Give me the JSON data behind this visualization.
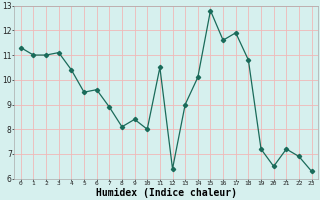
{
  "x": [
    0,
    1,
    2,
    3,
    4,
    5,
    6,
    7,
    8,
    9,
    10,
    11,
    12,
    13,
    14,
    15,
    16,
    17,
    18,
    19,
    20,
    21,
    22,
    23
  ],
  "y": [
    11.3,
    11.0,
    11.0,
    11.1,
    10.4,
    9.5,
    9.6,
    8.9,
    8.1,
    8.4,
    8.0,
    10.5,
    6.4,
    9.0,
    10.1,
    12.8,
    11.6,
    11.9,
    10.8,
    7.2,
    6.5,
    7.2,
    6.9,
    6.3
  ],
  "xlim": [
    -0.5,
    23.5
  ],
  "ylim": [
    6,
    13
  ],
  "yticks": [
    6,
    7,
    8,
    9,
    10,
    11,
    12,
    13
  ],
  "xticks": [
    0,
    1,
    2,
    3,
    4,
    5,
    6,
    7,
    8,
    9,
    10,
    11,
    12,
    13,
    14,
    15,
    16,
    17,
    18,
    19,
    20,
    21,
    22,
    23
  ],
  "xlabel": "Humidex (Indice chaleur)",
  "line_color": "#1a6b5a",
  "marker": "D",
  "marker_size": 2.2,
  "bg_color": "#d6f0ee",
  "grid_color": "#f0b8b8",
  "xlabel_fontsize": 7,
  "xtick_fontsize": 4.5,
  "ytick_fontsize": 5.5
}
